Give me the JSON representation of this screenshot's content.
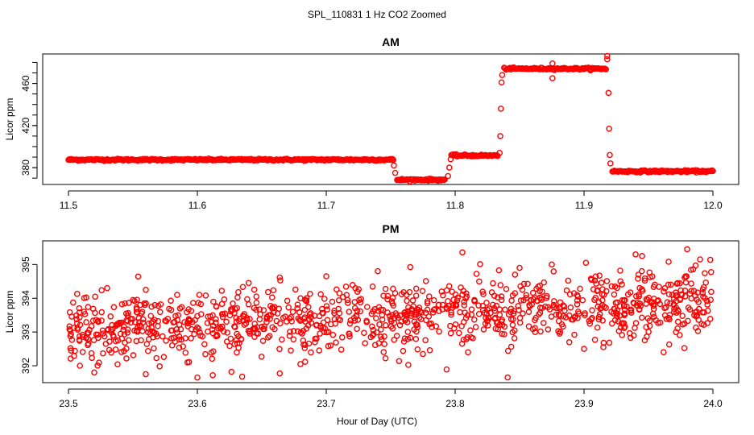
{
  "chart_data": {
    "title": "SPL_110831  1 Hz CO2 Zoomed",
    "xlabel": "Hour of Day (UTC)",
    "marker_color": "#ff0000",
    "panels": [
      {
        "type": "scatter",
        "title": "AM",
        "ylabel": "Licor ppm",
        "xlim": [
          11.48,
          12.02
        ],
        "ylim": [
          364,
          488
        ],
        "xticks": [
          "11.5",
          "11.6",
          "11.7",
          "11.8",
          "11.9",
          "12.0"
        ],
        "yticks": [
          "380",
          "420",
          "460"
        ],
        "segments": [
          {
            "x_start": 11.5,
            "x_end": 11.752,
            "y": 387.5
          },
          {
            "x_start": 11.755,
            "x_end": 11.792,
            "y": 368.5
          },
          {
            "x_start": 11.797,
            "x_end": 11.833,
            "y": 391.5
          },
          {
            "x_start": 11.838,
            "x_end": 11.917,
            "y": 474.0
          },
          {
            "x_start": 11.922,
            "x_end": 12.0,
            "y": 376.5
          }
        ],
        "transitions": [
          {
            "x": 11.7525,
            "y": 382
          },
          {
            "x": 11.7535,
            "y": 375
          },
          {
            "x": 11.7945,
            "y": 372
          },
          {
            "x": 11.7955,
            "y": 380
          },
          {
            "x": 11.7965,
            "y": 388
          },
          {
            "x": 11.8345,
            "y": 394
          },
          {
            "x": 11.835,
            "y": 410
          },
          {
            "x": 11.8355,
            "y": 436
          },
          {
            "x": 11.836,
            "y": 461
          },
          {
            "x": 11.8365,
            "y": 468
          },
          {
            "x": 11.918,
            "y": 486
          },
          {
            "x": 11.918,
            "y": 483
          },
          {
            "x": 11.919,
            "y": 451
          },
          {
            "x": 11.9195,
            "y": 417
          },
          {
            "x": 11.92,
            "y": 392
          },
          {
            "x": 11.9205,
            "y": 384
          },
          {
            "x": 11.8755,
            "y": 479
          },
          {
            "x": 11.8755,
            "y": 465
          }
        ]
      },
      {
        "type": "scatter",
        "title": "PM",
        "ylabel": "Licor ppm",
        "xlim": [
          23.48,
          24.02
        ],
        "ylim": [
          391.5,
          395.7
        ],
        "xticks": [
          "23.5",
          "23.6",
          "23.7",
          "23.8",
          "23.9",
          "24.0"
        ],
        "yticks": [
          "392",
          "393",
          "394",
          "395"
        ],
        "trend": {
          "x_start": 23.5,
          "x_end": 24.0,
          "y_start": 393.05,
          "y_end": 393.95,
          "spread": 0.5,
          "n_points": 1100
        },
        "outliers": [
          {
            "x": 23.502,
            "y": 392.45
          },
          {
            "x": 23.52,
            "y": 391.8
          },
          {
            "x": 23.56,
            "y": 391.75
          },
          {
            "x": 23.6,
            "y": 391.65
          },
          {
            "x": 23.612,
            "y": 391.72
          },
          {
            "x": 23.68,
            "y": 392.05
          },
          {
            "x": 23.7,
            "y": 394.65
          },
          {
            "x": 23.74,
            "y": 394.8
          },
          {
            "x": 23.775,
            "y": 392.35
          },
          {
            "x": 23.81,
            "y": 392.4
          },
          {
            "x": 23.85,
            "y": 394.9
          },
          {
            "x": 23.875,
            "y": 395.0
          },
          {
            "x": 23.9,
            "y": 392.5
          },
          {
            "x": 23.915,
            "y": 392.55
          },
          {
            "x": 23.94,
            "y": 395.3
          },
          {
            "x": 23.945,
            "y": 395.25
          },
          {
            "x": 23.98,
            "y": 395.45
          },
          {
            "x": 23.99,
            "y": 395.15
          },
          {
            "x": 23.53,
            "y": 394.3
          },
          {
            "x": 23.56,
            "y": 394.25
          }
        ]
      }
    ]
  }
}
